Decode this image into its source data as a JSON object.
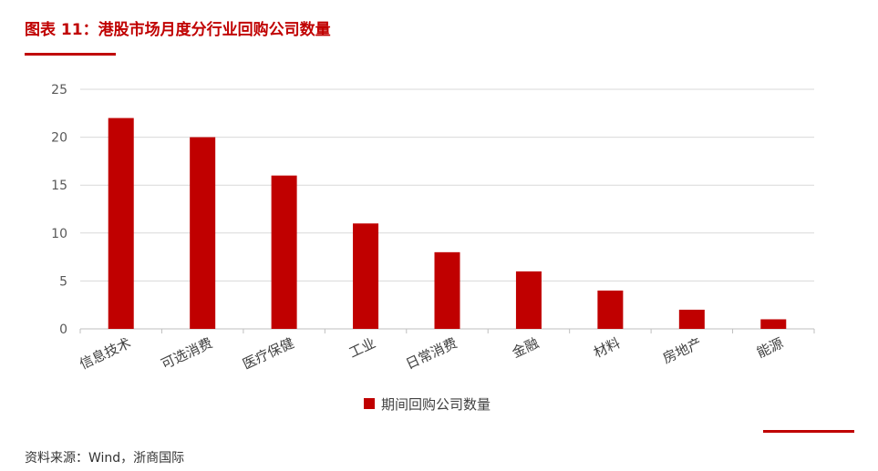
{
  "header": {
    "title": "图表 11：港股市场月度分行业回购公司数量"
  },
  "footer": {
    "source": "资料来源：Wind，浙商国际"
  },
  "colors": {
    "bar": "#C00000",
    "accent": "#C00000",
    "grid": "#D9D9D9"
  },
  "chart_data": {
    "type": "bar",
    "categories": [
      "信息技术",
      "可选消费",
      "医疗保健",
      "工业",
      "日常消费",
      "金融",
      "材料",
      "房地产",
      "能源"
    ],
    "series": [
      {
        "name": "期间回购公司数量",
        "values": [
          22,
          20,
          16,
          11,
          8,
          6,
          4,
          2,
          1
        ]
      }
    ],
    "yticks": [
      "0",
      "5",
      "10",
      "15",
      "20",
      "25"
    ],
    "ylim": [
      0,
      25
    ],
    "grid": true,
    "legend": "bottom"
  }
}
